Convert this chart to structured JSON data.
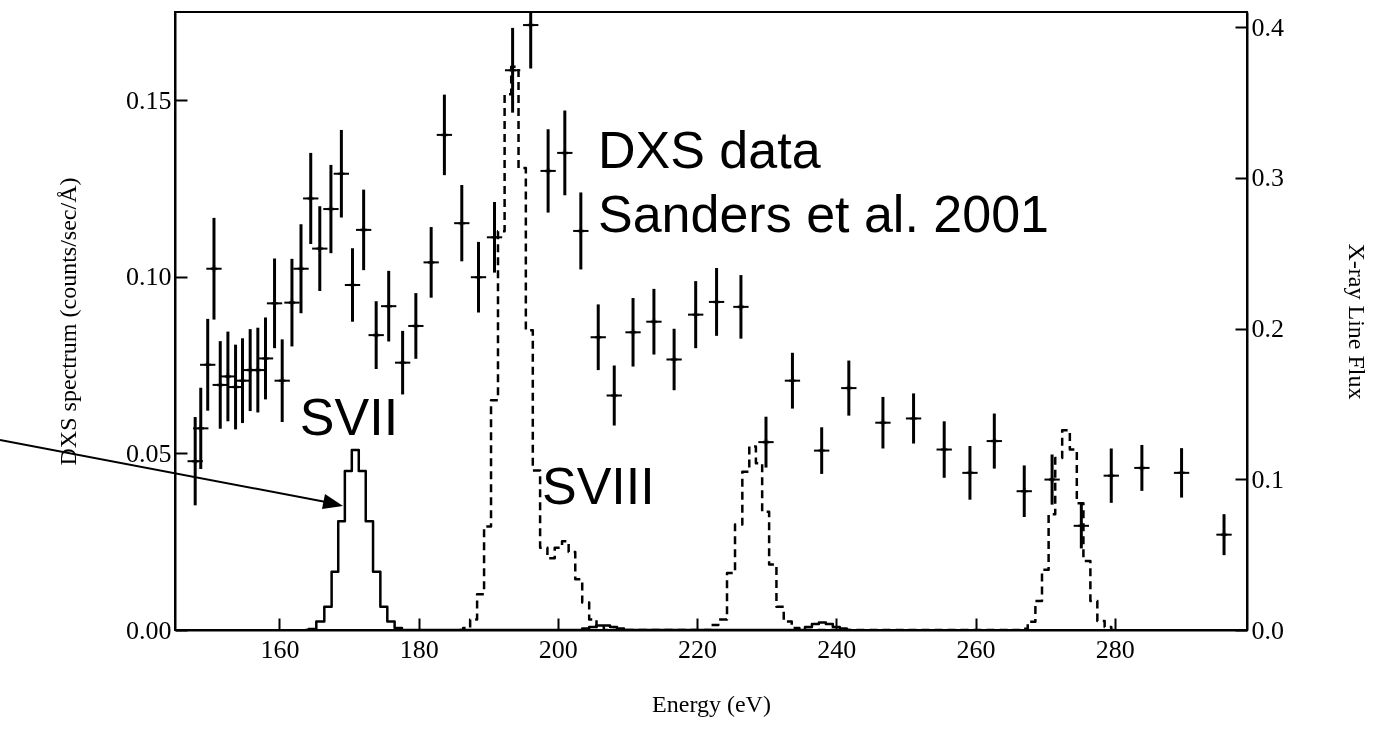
{
  "chart_data": {
    "type": "scatter",
    "xlabel": "Energy (eV)",
    "ylabel": "DXS spectrum (counts/sec/Å)",
    "y2label": "X-ray Line Flux",
    "xlim": [
      145,
      299
    ],
    "xticks": [
      160,
      180,
      200,
      220,
      240,
      260,
      280
    ],
    "ylim": [
      0,
      0.175
    ],
    "yticks": [
      {
        "value": 0,
        "label": "0.00"
      },
      {
        "value": 0.05,
        "label": "0.05"
      },
      {
        "value": 0.1,
        "label": "0.10"
      },
      {
        "value": 0.15,
        "label": "0.15"
      }
    ],
    "y2lim": [
      0,
      0.41
    ],
    "y2ticks": [
      {
        "value": 0,
        "label": "0.0"
      },
      {
        "value": 0.1,
        "label": "0.1"
      },
      {
        "value": 0.2,
        "label": "0.2"
      },
      {
        "value": 0.3,
        "label": "0.3"
      },
      {
        "value": 0.4,
        "label": "0.4"
      }
    ],
    "grid": false,
    "annotations": [
      "DXS data",
      "Sanders et al. 2001",
      "SVII",
      "SVIII"
    ],
    "series": [
      {
        "type": "scatter",
        "marker": "cross",
        "color": "#000000",
        "x": [
          147.9,
          148.7,
          149.7,
          150.6,
          151.5,
          152.6,
          153.7,
          154.7,
          155.8,
          156.9,
          158.0,
          159.3,
          160.4,
          161.8,
          163.1,
          164.5,
          165.8,
          167.4,
          168.9,
          170.5,
          172.1,
          173.9,
          175.7,
          177.7,
          179.6,
          181.8,
          183.7,
          186.2,
          188.6,
          190.9,
          193.5,
          196.1,
          198.6,
          201.0,
          203.3,
          205.8,
          208.1,
          210.8,
          213.8,
          216.7,
          219.8,
          222.8,
          226.3,
          229.9,
          233.7,
          237.9,
          241.8,
          246.7,
          251.1,
          255.5,
          259.2,
          262.7,
          267.0,
          271.0,
          275.2,
          279.5,
          283.9,
          289.6,
          295.7
        ],
        "values": [
          0.0478,
          0.0571,
          0.0751,
          0.1023,
          0.0694,
          0.0718,
          0.0688,
          0.0706,
          0.0736,
          0.0736,
          0.0769,
          0.0925,
          0.0706,
          0.0927,
          0.1023,
          0.1222,
          0.108,
          0.1192,
          0.1292,
          0.0977,
          0.1133,
          0.0835,
          0.0917,
          0.0757,
          0.0861,
          0.1041,
          0.1402,
          0.1152,
          0.0999,
          0.1112,
          0.1585,
          0.1713,
          0.13,
          0.1351,
          0.113,
          0.0829,
          0.0664,
          0.0843,
          0.0873,
          0.0766,
          0.0893,
          0.0929,
          0.0915,
          0.0532,
          0.0706,
          0.0508,
          0.0685,
          0.0587,
          0.0599,
          0.0511,
          0.0445,
          0.0535,
          0.0393,
          0.0426,
          0.0295,
          0.0437,
          0.0459,
          0.0445,
          0.027
        ],
        "errors": [
          0.0125,
          0.0115,
          0.013,
          0.0144,
          0.0124,
          0.0127,
          0.012,
          0.012,
          0.0116,
          0.012,
          0.0116,
          0.0127,
          0.0117,
          0.0124,
          0.0126,
          0.0129,
          0.012,
          0.0125,
          0.0124,
          0.0104,
          0.0114,
          0.0096,
          0.01,
          0.009,
          0.0093,
          0.01,
          0.0114,
          0.0108,
          0.01,
          0.01,
          0.012,
          [
            0.159,
            0.175
          ],
          0.0118,
          0.012,
          0.0109,
          0.0093,
          0.0085,
          0.0097,
          0.0093,
          0.0087,
          0.0095,
          0.0096,
          0.009,
          0.0072,
          0.0079,
          0.0066,
          0.0078,
          0.0073,
          0.0071,
          0.008,
          0.0076,
          0.0078,
          0.0073,
          0.0071,
          0.0064,
          0.0077,
          0.0065,
          0.007,
          0.0058
        ],
        "xerrors": [
          1.1,
          1.1,
          1.1,
          1.1,
          1.1,
          1.1,
          1.1,
          1.1,
          1.1,
          1.1,
          1.1,
          1.1,
          1.1,
          1.1,
          1.1,
          1.1,
          1.1,
          1.1,
          1.1,
          1.1,
          1.1,
          1.1,
          1.1,
          1.1,
          1.1,
          1.1,
          1.1,
          1.1,
          1.1,
          1.1,
          1.1,
          1.1,
          1.1,
          1.1,
          1.1,
          1.1,
          1.1,
          1.1,
          1.1,
          1.1,
          1.1,
          1.1,
          1.1,
          1.1,
          1.1,
          1.1,
          1.1,
          1.1,
          1.1,
          1.1,
          1.1,
          1.1,
          1.1,
          1.1,
          1.1,
          1.1,
          1.1,
          1.1,
          1.1
        ]
      },
      {
        "type": "step",
        "axis": "y2",
        "color": "#000000",
        "line_style": "solid",
        "x": [
          163.7,
          164.7,
          165.9,
          167.0,
          168.0,
          168.9,
          169.9,
          170.9,
          171.9,
          172.9,
          174.0,
          175.0,
          176.0,
          177.1,
          178.1,
          203.0,
          204.0,
          205.0,
          206.0,
          207.0,
          208.0,
          209.0,
          210.0,
          235.0,
          236.0,
          237.0,
          238.0,
          239.0,
          240.0,
          241.0,
          242.0
        ],
        "values": [
          0,
          0.0006,
          0.0056,
          0.0154,
          0.0386,
          0.0722,
          0.1055,
          0.1195,
          0.1055,
          0.0722,
          0.0386,
          0.0154,
          0.0056,
          0.0014,
          0,
          0,
          0.001,
          0.002,
          0.003,
          0.003,
          0.002,
          0.001,
          0,
          0,
          0.002,
          0.004,
          0.005,
          0.004,
          0.002,
          0.001,
          0
        ]
      },
      {
        "type": "step",
        "axis": "y2",
        "color": "#000000",
        "line_style": "dashed",
        "x": [
          185.9,
          186.9,
          187.9,
          188.9,
          189.9,
          190.9,
          191.9,
          192.8,
          193.8,
          194.9,
          195.9,
          196.9,
          198.0,
          199.0,
          200.1,
          201.1,
          202.0,
          203.0,
          204.0,
          205.0,
          206.1,
          207.1,
          221.4,
          222.4,
          223.7,
          224.9,
          226.0,
          227.0,
          228.0,
          228.9,
          229.8,
          230.9,
          231.9,
          233.0,
          234.2,
          235.2,
          265.9,
          266.9,
          268.1,
          269.1,
          270.0,
          271.0,
          271.9,
          273.0,
          274.1,
          275.0,
          276.0,
          277.0,
          278.0,
          279.1,
          279.9
        ],
        "values": [
          0,
          0.0014,
          0.007,
          0.0238,
          0.0686,
          0.1525,
          0.2645,
          0.3554,
          0.3736,
          0.3065,
          0.1988,
          0.1058,
          0.0546,
          0.0476,
          0.0546,
          0.0588,
          0.0518,
          0.0336,
          0.0182,
          0.007,
          0.002,
          0,
          0,
          0.0034,
          0.007,
          0.0378,
          0.07,
          0.105,
          0.1218,
          0.1106,
          0.0784,
          0.0434,
          0.0154,
          0.0056,
          0.0014,
          0,
          0,
          0.0009,
          0.0055,
          0.0193,
          0.0399,
          0.0768,
          0.1141,
          0.1326,
          0.1198,
          0.0841,
          0.0458,
          0.0193,
          0.006,
          0.002,
          0
        ]
      }
    ]
  }
}
